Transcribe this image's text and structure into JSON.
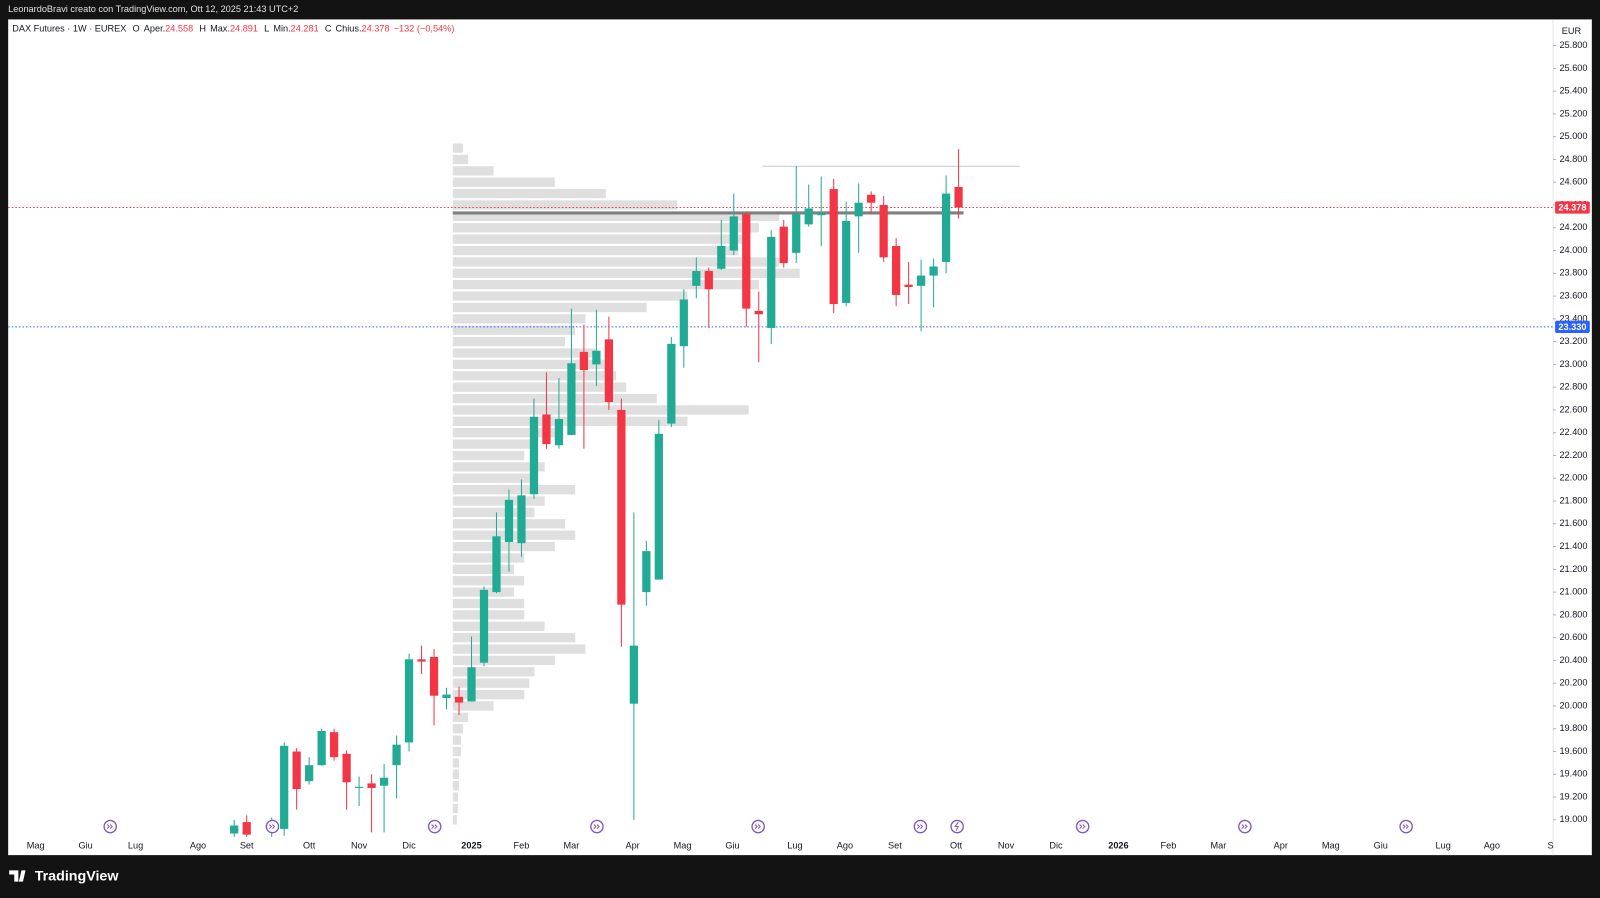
{
  "header": {
    "title": "LeonardoBravi creato con TradingView.com, Ott 12, 2025 21:43 UTC+2",
    "brand": "TradingView"
  },
  "chart_data": {
    "type": "candlestick",
    "symbol": "DAX Futures · 1W · EUREX",
    "ohlc_legend": [
      {
        "key": "O",
        "label": "Aper.",
        "value": "24.558"
      },
      {
        "key": "H",
        "label": "Max.",
        "value": "24.891"
      },
      {
        "key": "L",
        "label": "Min.",
        "value": "24.281"
      },
      {
        "key": "C",
        "label": "Chius.",
        "value": "24.378"
      }
    ],
    "change": "−132 (−0,54%)",
    "currency": "EUR",
    "up_color": "#22ab94",
    "down_color": "#f23645",
    "x": [
      -4,
      -3,
      -1,
      0,
      1,
      2,
      3,
      4,
      5,
      6,
      7,
      8,
      9,
      10,
      11,
      12,
      13,
      14,
      15,
      16,
      17,
      18,
      19,
      20,
      21,
      22,
      23,
      24,
      25,
      26,
      27,
      28,
      29,
      30,
      31,
      32,
      33,
      34,
      35,
      36,
      37,
      38,
      39,
      40,
      41,
      42,
      43,
      44,
      45,
      46,
      47,
      48,
      49,
      50,
      51,
      52,
      53,
      54
    ],
    "open": [
      18880,
      18980,
      18900,
      18920,
      19600,
      19340,
      19480,
      19770,
      19580,
      19280,
      19320,
      19300,
      19480,
      19680,
      20410,
      20430,
      20070,
      20080,
      20040,
      20380,
      21000,
      21440,
      21430,
      21860,
      22560,
      22290,
      22380,
      23110,
      23000,
      23220,
      22600,
      20020,
      21000,
      21110,
      22480,
      23160,
      23690,
      23820,
      23840,
      24000,
      24320,
      23470,
      23320,
      24210,
      23980,
      24230,
      24310,
      24540,
      23540,
      24300,
      24490,
      24400,
      24040,
      23700,
      23690,
      23780,
      23900,
      24558
    ],
    "high": [
      19000,
      19040,
      19020,
      19680,
      19630,
      19550,
      19800,
      19800,
      19610,
      19380,
      19400,
      19490,
      19740,
      20460,
      20530,
      20500,
      20160,
      20170,
      20610,
      21050,
      21700,
      21900,
      21990,
      22700,
      22930,
      22880,
      23490,
      23350,
      23480,
      23420,
      22700,
      21700,
      21450,
      22510,
      23240,
      23660,
      23940,
      23850,
      24270,
      24500,
      24340,
      23640,
      24180,
      24270,
      24740,
      24580,
      24650,
      24630,
      24430,
      24590,
      24520,
      24480,
      24110,
      23900,
      23920,
      23930,
      24660,
      24891
    ],
    "low": [
      18850,
      18850,
      18850,
      18860,
      19090,
      19310,
      19475,
      19520,
      19090,
      19120,
      18890,
      18890,
      19190,
      19600,
      20280,
      19830,
      19970,
      19920,
      20040,
      20350,
      20990,
      21180,
      21310,
      21820,
      22260,
      22260,
      22380,
      22260,
      22810,
      22600,
      20520,
      19000,
      20880,
      21110,
      22450,
      22970,
      23580,
      23320,
      23830,
      23960,
      23330,
      23020,
      23180,
      23850,
      23890,
      24210,
      24040,
      23450,
      23510,
      23980,
      24320,
      23900,
      23510,
      23530,
      23290,
      23500,
      23800,
      24281
    ],
    "close": [
      18950,
      18870,
      18950,
      19650,
      19270,
      19480,
      19780,
      19550,
      19330,
      19290,
      19280,
      19370,
      19660,
      20410,
      20390,
      20090,
      20100,
      20030,
      20340,
      21020,
      21490,
      21810,
      21850,
      22540,
      22300,
      22520,
      23010,
      22950,
      23120,
      22670,
      20890,
      20530,
      21360,
      22390,
      23180,
      23570,
      23820,
      23660,
      24040,
      24300,
      23490,
      23440,
      24120,
      23890,
      24320,
      24370,
      24330,
      23530,
      24260,
      24420,
      24420,
      23940,
      23610,
      23680,
      23780,
      23860,
      24500,
      24378
    ],
    "xlim": [
      -22.1,
      101.6
    ],
    "xticks": [
      {
        "value": -19.9,
        "label": "Mag"
      },
      {
        "value": -15.9,
        "label": "Giu"
      },
      {
        "value": -11.9,
        "label": "Lug"
      },
      {
        "value": -6.9,
        "label": "Ago"
      },
      {
        "value": -3.0,
        "label": "Set"
      },
      {
        "value": 2.0,
        "label": "Ott"
      },
      {
        "value": 6.0,
        "label": "Nov"
      },
      {
        "value": 10.0,
        "label": "Dic"
      },
      {
        "value": 15.0,
        "label": "2025"
      },
      {
        "value": 19.0,
        "label": "Feb"
      },
      {
        "value": 23.0,
        "label": "Mar"
      },
      {
        "value": 27.9,
        "label": "Apr"
      },
      {
        "value": 31.9,
        "label": "Mag"
      },
      {
        "value": 35.9,
        "label": "Giu"
      },
      {
        "value": 40.9,
        "label": "Lug"
      },
      {
        "value": 44.9,
        "label": "Ago"
      },
      {
        "value": 48.9,
        "label": "Set"
      },
      {
        "value": 53.8,
        "label": "Ott"
      },
      {
        "value": 57.8,
        "label": "Nov"
      },
      {
        "value": 61.8,
        "label": "Dic"
      },
      {
        "value": 66.8,
        "label": "2026"
      },
      {
        "value": 70.8,
        "label": "Feb"
      },
      {
        "value": 74.8,
        "label": "Mar"
      },
      {
        "value": 79.8,
        "label": "Apr"
      },
      {
        "value": 83.8,
        "label": "Mag"
      },
      {
        "value": 87.8,
        "label": "Giu"
      },
      {
        "value": 92.8,
        "label": "Lug"
      },
      {
        "value": 96.7,
        "label": "Ago"
      },
      {
        "value": 101.4,
        "label": "S"
      }
    ],
    "ylim": [
      18690,
      26030
    ],
    "yticks": [
      {
        "value": 19000,
        "label": "19.000"
      },
      {
        "value": 19200,
        "label": "19.200"
      },
      {
        "value": 19400,
        "label": "19.400"
      },
      {
        "value": 19600,
        "label": "19.600"
      },
      {
        "value": 19800,
        "label": "19.800"
      },
      {
        "value": 20000,
        "label": "20.000"
      },
      {
        "value": 20200,
        "label": "20.200"
      },
      {
        "value": 20400,
        "label": "20.400"
      },
      {
        "value": 20600,
        "label": "20.600"
      },
      {
        "value": 20800,
        "label": "20.800"
      },
      {
        "value": 21000,
        "label": "21.000"
      },
      {
        "value": 21200,
        "label": "21.200"
      },
      {
        "value": 21400,
        "label": "21.400"
      },
      {
        "value": 21600,
        "label": "21.600"
      },
      {
        "value": 21800,
        "label": "21.800"
      },
      {
        "value": 22000,
        "label": "22.000"
      },
      {
        "value": 22200,
        "label": "22.200"
      },
      {
        "value": 22400,
        "label": "22.400"
      },
      {
        "value": 22600,
        "label": "22.600"
      },
      {
        "value": 22800,
        "label": "22.800"
      },
      {
        "value": 23000,
        "label": "23.000"
      },
      {
        "value": 23200,
        "label": "23.200"
      },
      {
        "value": 23400,
        "label": "23.400"
      },
      {
        "value": 23600,
        "label": "23.600"
      },
      {
        "value": 23800,
        "label": "23.800"
      },
      {
        "value": 24000,
        "label": "24.000"
      },
      {
        "value": 24200,
        "label": "24.200"
      },
      {
        "value": 24400,
        "label": "24.400"
      },
      {
        "value": 24600,
        "label": "24.600"
      },
      {
        "value": 24800,
        "label": "24.800"
      },
      {
        "value": 25000,
        "label": "25.000"
      },
      {
        "value": 25200,
        "label": "25.200"
      },
      {
        "value": 25400,
        "label": "25.400"
      },
      {
        "value": 25600,
        "label": "25.600"
      },
      {
        "value": 25800,
        "label": "25.800"
      }
    ],
    "price_lines": [
      {
        "value": 24378,
        "label": "24.378",
        "color": "#f23645"
      },
      {
        "value": 23330,
        "label": "23.330",
        "color": "#2962ff"
      }
    ],
    "levels": [
      {
        "value": 24330,
        "x": [
          13.5,
          54.4
        ],
        "color": "#7f7f7f",
        "width": 3
      },
      {
        "value": 24740,
        "x": [
          38.3,
          58.9
        ],
        "color": "#c8c8c8",
        "width": 1
      }
    ],
    "volume_profile": {
      "x_start": 13.5,
      "color": "#c4c4c4",
      "prices": [
        19000,
        19100,
        19200,
        19300,
        19400,
        19500,
        19600,
        19700,
        19800,
        19900,
        20000,
        20100,
        20200,
        20300,
        20400,
        20500,
        20600,
        20700,
        20800,
        20900,
        21000,
        21100,
        21200,
        21300,
        21400,
        21500,
        21600,
        21700,
        21800,
        21900,
        22000,
        22100,
        22200,
        22300,
        22400,
        22500,
        22600,
        22700,
        22800,
        22900,
        23000,
        23100,
        23200,
        23300,
        23400,
        23500,
        23600,
        23700,
        23800,
        23900,
        24000,
        24100,
        24200,
        24300,
        24400,
        24500,
        24600,
        24700,
        24800,
        24900
      ],
      "volumes": [
        4,
        5,
        5,
        6,
        6,
        6,
        8,
        8,
        10,
        15,
        40,
        70,
        75,
        80,
        100,
        130,
        120,
        90,
        70,
        70,
        60,
        70,
        60,
        70,
        100,
        120,
        110,
        80,
        90,
        120,
        80,
        90,
        70,
        80,
        100,
        230,
        290,
        200,
        170,
        160,
        150,
        140,
        110,
        120,
        130,
        190,
        230,
        300,
        340,
        320,
        280,
        290,
        300,
        320,
        220,
        150,
        100,
        40,
        15,
        10
      ]
    }
  }
}
